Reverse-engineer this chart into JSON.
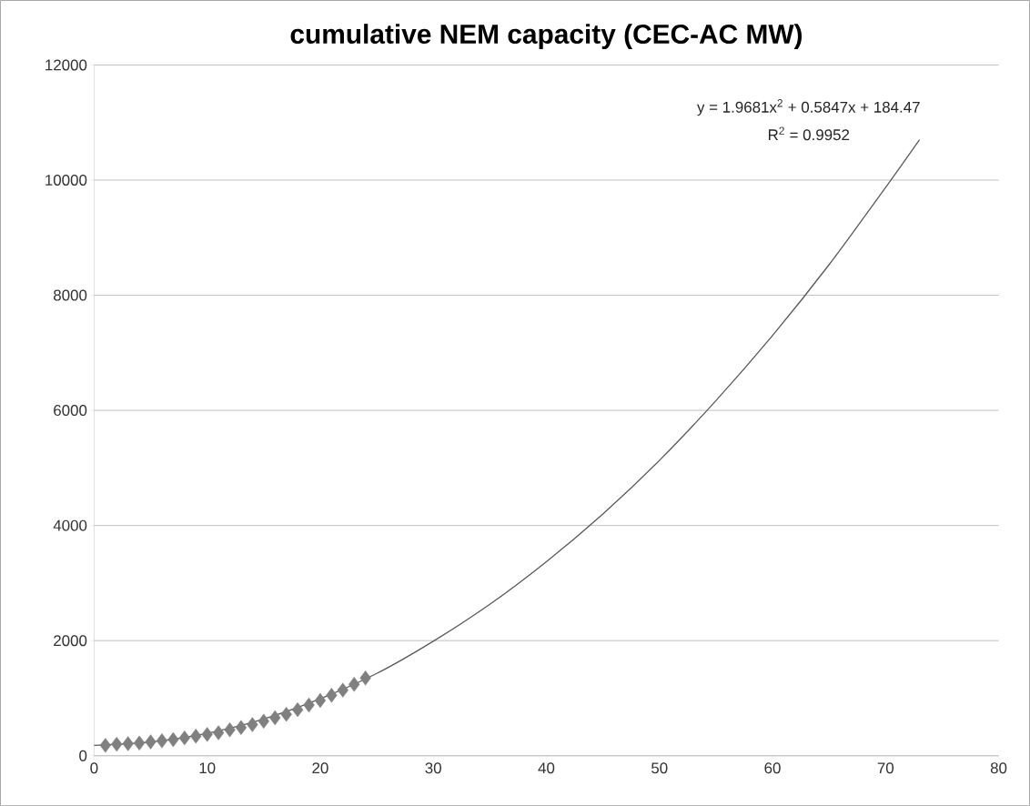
{
  "chart_data": {
    "type": "scatter",
    "title": "cumulative NEM capacity (CEC-AC MW)",
    "xlim": [
      0,
      80
    ],
    "xticks": [
      0,
      10,
      20,
      30,
      40,
      50,
      60,
      70,
      80
    ],
    "ylim": [
      0,
      12000
    ],
    "yticks": [
      0,
      2000,
      4000,
      6000,
      8000,
      10000,
      12000
    ],
    "grid": "y",
    "marker": "diamond",
    "annotations": [
      "y = 1.9681x$^{2}$ + 0.5847x + 184.47",
      "R$^{2}$ = 0.9952"
    ],
    "series": [
      {
        "color": "#808080",
        "x": [
          1,
          2,
          3,
          4,
          5,
          6,
          7,
          8,
          9,
          10,
          11,
          12,
          13,
          14,
          15,
          16,
          17,
          18,
          19,
          20,
          21,
          22,
          23,
          24
        ],
        "values": [
          180,
          200,
          210,
          220,
          240,
          260,
          280,
          310,
          340,
          370,
          400,
          450,
          490,
          540,
          600,
          660,
          720,
          800,
          880,
          960,
          1050,
          1140,
          1240,
          1350
        ]
      },
      {
        "type": "line",
        "marker": "none",
        "color": "#595959",
        "x": [
          0,
          5,
          10,
          15,
          20,
          25,
          30,
          35,
          40,
          45,
          50,
          55,
          60,
          65,
          70,
          73
        ],
        "values": [
          180,
          240,
          390,
          640,
          990,
          1430,
          1990,
          2630,
          3370,
          4200,
          5130,
          6170,
          7300,
          8530,
          9870,
          10700
        ]
      }
    ]
  }
}
